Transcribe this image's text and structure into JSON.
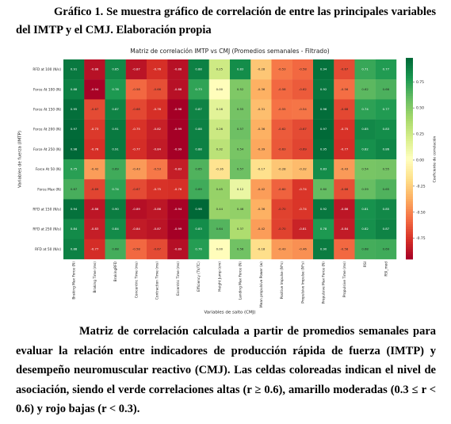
{
  "header": {
    "title": "Gráfico 1. Se muestra gráfico de correlación de entre las principales variables del IMTP y el CMJ. Elaboración propia"
  },
  "chart_data": {
    "type": "heatmap",
    "title": "Matriz de correlación IMTP vs CMJ (Promedios semanales - Filtrado)",
    "x_label": "Variables de salto (CMJ)",
    "y_label": "Variables de fuerza (IMTP)",
    "colorbar_label": "Coeficiente de correlación",
    "colormap": "RdYlGn",
    "zlim": [
      -0.95,
      0.98
    ],
    "colorbar_ticks": [
      0.75,
      {
        "value": 0.5,
        "label": "0.50"
      },
      0.25,
      {
        "value": 0,
        "label": "0.00"
      },
      -0.25,
      {
        "value": -0.5,
        "label": "-0.50"
      },
      -0.75
    ],
    "categories": [
      "Braking Max Force (N)",
      "Braking Time (ms)",
      "BrakingRFD",
      "Concentric Time (ms)",
      "Contraction Time (ms)",
      "Eccentric Time (ms)",
      "Efficiency (TV/TC)",
      "Height Jump (cm)",
      "Landing Max Force (N)",
      "Mean propulsive Power (w)",
      "Positive Impulse (N*s)",
      "Propulsive Impulse (N*s)",
      "Propulsive Max Force (N)",
      "Propulsive Time (ms)",
      "RSI",
      "RSI_mod"
    ],
    "series": [
      {
        "name": "RFD at 100 (N/s)",
        "values": [
          0.91,
          -0.88,
          0.85,
          -0.87,
          -0.76,
          -0.88,
          0.88,
          0.25,
          0.83,
          -0.28,
          -0.53,
          -0.58,
          0.94,
          -0.67,
          0.71,
          0.77
        ],
        "value_labels": [
          "0.91",
          "-0.88",
          "0.85",
          "-0.87",
          "-0.76",
          "-0.88",
          "0.88",
          "0.25",
          "0.83",
          "-0.28",
          "-0.53",
          "-0.58",
          "0.94",
          "-0.67",
          "0.71",
          "0.77"
        ]
      },
      {
        "name": "Force At 100 (N)",
        "values": [
          0.88,
          -0.94,
          0.78,
          -0.58,
          -0.66,
          -0.88,
          0.73,
          0,
          0.52,
          -0.36,
          -0.58,
          -0.62,
          0.92,
          -0.56,
          0.62,
          0.66
        ],
        "value_labels": [
          "0.88",
          "-0.94",
          "0.78",
          "-0.58",
          "-0.66",
          "-0.88",
          "0.73",
          "0.00",
          "0.52",
          "-0.36",
          "-0.58",
          "-0.62",
          "0.92",
          "-0.56",
          "0.62",
          "0.66"
        ]
      },
      {
        "name": "Force At 150 (N)",
        "values": [
          0.95,
          -0.67,
          0.87,
          -0.68,
          -0.76,
          -0.98,
          0.87,
          0.16,
          0.55,
          -0.31,
          -0.55,
          -0.54,
          0.96,
          -0.68,
          0.74,
          0.77
        ],
        "value_labels": [
          "0.95",
          "-0.67",
          "0.87",
          "-0.68",
          "-0.76",
          "-0.98",
          "0.87",
          "0.16",
          "0.55",
          "-0.31",
          "-0.55",
          "-0.54",
          "0.96",
          "-0.68",
          "0.74",
          "0.77"
        ]
      },
      {
        "name": "Force At 200 (N)",
        "values": [
          0.97,
          -0.73,
          0.91,
          -0.75,
          -0.82,
          -0.99,
          0.88,
          0.26,
          0.57,
          -0.36,
          -0.62,
          -0.67,
          0.97,
          -0.75,
          0.85,
          0.83
        ],
        "value_labels": [
          "0.97",
          "-0.73",
          "0.91",
          "-0.75",
          "-0.82",
          "-0.99",
          "0.88",
          "0.26",
          "0.57",
          "-0.36",
          "-0.62",
          "-0.67",
          "0.97",
          "-0.75",
          "0.85",
          "0.83"
        ]
      },
      {
        "name": "Force At 250 (N)",
        "values": [
          0.98,
          -0.76,
          0.91,
          -0.77,
          -0.84,
          -0.99,
          0.88,
          0.32,
          0.54,
          -0.39,
          -0.63,
          -0.69,
          0.95,
          -0.77,
          0.82,
          0.86
        ],
        "value_labels": [
          "0.98",
          "-0.76",
          "0.91",
          "-0.77",
          "-0.84",
          "-0.99",
          "0.88",
          "0.32",
          "0.54",
          "-0.39",
          "-0.63",
          "-0.69",
          "0.95",
          "-0.77",
          "0.82",
          "0.86"
        ]
      },
      {
        "name": "Force At 50 (N)",
        "values": [
          0.75,
          -0.42,
          0.69,
          -0.43,
          -0.53,
          -0.83,
          0.65,
          -0.16,
          0.57,
          -0.17,
          -0.28,
          -0.32,
          0.83,
          -0.43,
          0.54,
          0.55
        ],
        "value_labels": [
          "0.75",
          "-0.42",
          "0.69",
          "-0.43",
          "-0.53",
          "-0.83",
          "0.65",
          "-0.16",
          "0.57",
          "-0.17",
          "-0.28",
          "-0.32",
          "0.83",
          "-0.43",
          "0.54",
          "0.55"
        ]
      },
      {
        "name": "Force Max (N)",
        "values": [
          0.67,
          -0.69,
          0.74,
          -0.67,
          -0.75,
          -0.76,
          0.69,
          0.45,
          0.12,
          -0.42,
          -0.6,
          -0.74,
          0.6,
          -0.66,
          0.59,
          0.65
        ],
        "value_labels": [
          "0.67",
          "-0.69",
          "0.74",
          "-0.67",
          "-0.75",
          "-0.76",
          "0.69",
          "0.45",
          "0.12",
          "-0.42",
          "-0.60",
          "-0.74",
          "0.60",
          "-0.66",
          "0.59",
          "0.65"
        ]
      },
      {
        "name": "RFD at 150 (N/s)",
        "values": [
          0.94,
          -0.86,
          0.9,
          -0.89,
          -0.86,
          -0.94,
          0.98,
          0.44,
          0.46,
          -0.36,
          -0.7,
          -0.74,
          0.92,
          -0.86,
          0.81,
          0.85
        ],
        "value_labels": [
          "0.94",
          "-0.86",
          "0.90",
          "-0.89",
          "-0.86",
          "-0.94",
          "0.98",
          "0.44",
          "0.46",
          "-0.36",
          "-0.70",
          "-0.74",
          "0.92",
          "-0.86",
          "0.81",
          "0.85"
        ]
      },
      {
        "name": "RFD at 250 (N/s)",
        "values": [
          0.84,
          -0.83,
          0.84,
          -0.84,
          -0.87,
          -0.99,
          0.83,
          0.64,
          0.37,
          -0.42,
          -0.7,
          -0.81,
          0.78,
          -0.84,
          0.82,
          0.87
        ],
        "value_labels": [
          "0.84",
          "-0.83",
          "0.84",
          "-0.84",
          "-0.87",
          "-0.99",
          "0.83",
          "0.64",
          "0.37",
          "-0.42",
          "-0.70",
          "-0.81",
          "0.78",
          "-0.84",
          "0.82",
          "0.87"
        ]
      },
      {
        "name": "RFD at 50 (N/s)",
        "values": [
          0.88,
          -0.77,
          0.68,
          -0.58,
          -0.67,
          -0.89,
          0.76,
          0,
          0.56,
          -0.18,
          -0.43,
          -0.46,
          0.9,
          -0.58,
          0.68,
          0.69
        ],
        "value_labels": [
          "0.88",
          "-0.77",
          "0.68",
          "-0.58",
          "-0.67",
          "-0.89",
          "0.76",
          "0.00",
          "0.56",
          "-0.18",
          "-0.43",
          "-0.46",
          "0.90",
          "-0.58",
          "0.68",
          "0.69"
        ]
      }
    ]
  },
  "caption": "Matriz de correlación calculada a partir de promedios semanales para evaluar la relación entre indicadores de producción rápida de fuerza (IMTP) y desempeño neuromuscular reactivo (CMJ). Las celdas coloreadas indican el nivel de asociación, siendo el verde correlaciones altas (r ≥ 0.6), amarillo moderadas (0.3 ≤ r < 0.6) y rojo bajas (r < 0.3)."
}
